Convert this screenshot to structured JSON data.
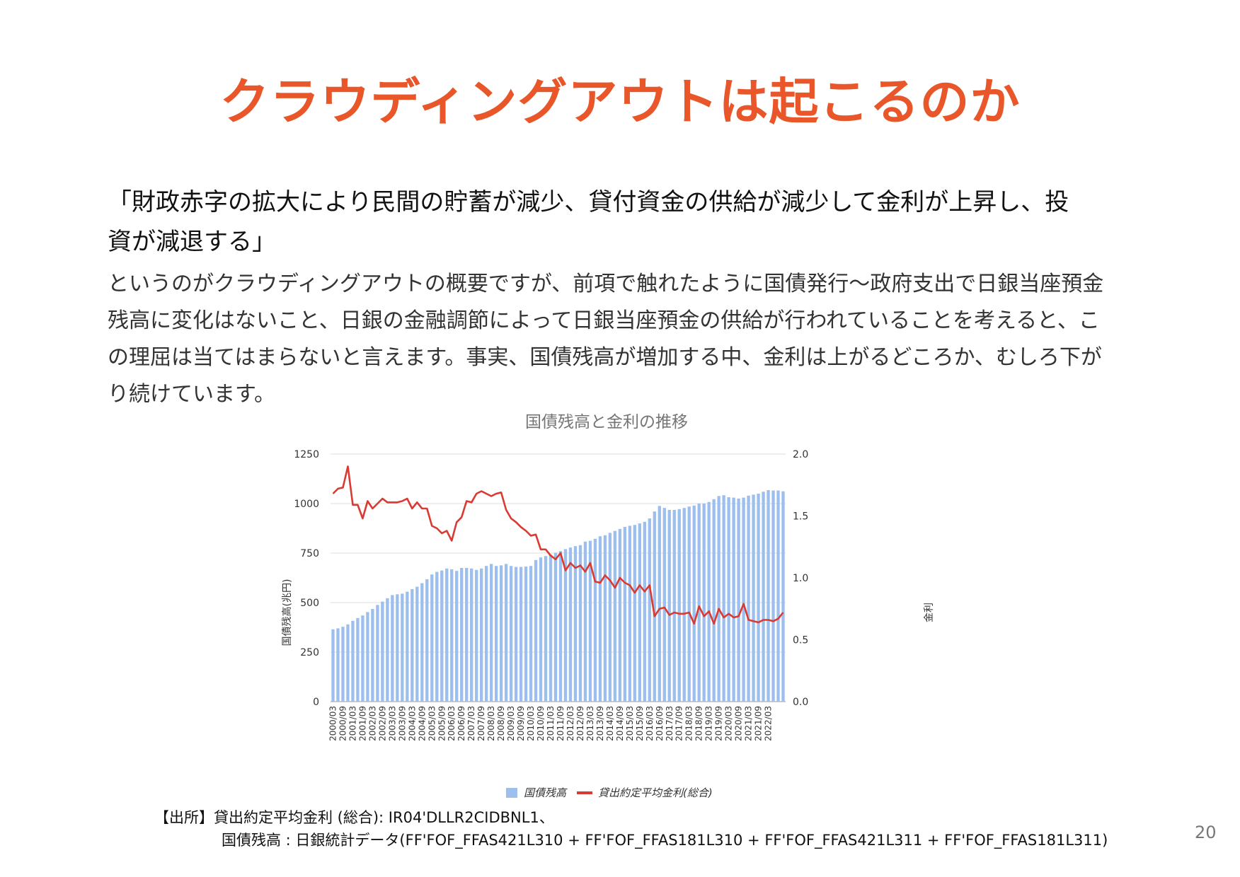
{
  "slide": {
    "title": "クラウディングアウトは起こるのか",
    "quote_line1": "「財政赤字の拡大により民間の貯蓄が減少、貸付資金の供給が減少して金利が上昇し、投",
    "quote_line2": "資が減退する」",
    "body_line1": "というのがクラウディングアウトの概要ですが、前項で触れたように国債発行〜政府支出で日銀当座預金",
    "body_line2": "残高に変化はないこと、日銀の金融調節によって日銀当座預金の供給が行われていることを考えると、こ",
    "body_line3": "の理屈は当てはまらないと言えます。事実、国債残高が増加する中、金利は上がるどころか、むしろ下が",
    "body_line4": "り続けています。",
    "source_line1": "【出所】貸出約定平均金利 (総合): IR04'DLLR2CIDBNL1、",
    "source_line2": "国債残高 : 日銀統計データ(FF'FOF_FFAS421L310 + FF'FOF_FFAS181L310 + FF'FOF_FFAS421L311 + FF'FOF_FFAS181L311)",
    "page_number": "20"
  },
  "chart_data": {
    "type": "bar+line",
    "title": "国債残高と金利の推移",
    "ylabel_left": "国債残高(兆円)",
    "ylabel_right": "金利",
    "ylim_left": [
      0,
      1250
    ],
    "ylim_right": [
      0.0,
      2.0
    ],
    "yticks_left": [
      "0",
      "250",
      "500",
      "750",
      "1000",
      "1250"
    ],
    "yticks_right": [
      "0.0",
      "0.5",
      "1.0",
      "1.5",
      "2.0"
    ],
    "x_tick_labels": [
      "2000/03",
      "2000/09",
      "2001/03",
      "2001/09",
      "2002/03",
      "2002/09",
      "2003/03",
      "2003/09",
      "2004/03",
      "2004/09",
      "2005/03",
      "2005/09",
      "2006/03",
      "2006/09",
      "2007/03",
      "2007/09",
      "2008/03",
      "2008/09",
      "2009/03",
      "2009/09",
      "2010/03",
      "2010/09",
      "2011/03",
      "2011/09",
      "2012/03",
      "2012/09",
      "2013/03",
      "2013/09",
      "2014/03",
      "2014/09",
      "2015/03",
      "2015/09",
      "2016/03",
      "2016/09",
      "2017/03",
      "2017/09",
      "2018/03",
      "2018/09",
      "2019/03",
      "2019/09",
      "2020/03",
      "2020/09",
      "2021/03",
      "2021/09",
      "2022/03"
    ],
    "grid": true,
    "legend_position": "bottom",
    "colors": {
      "bar": "#9dbfee",
      "line": "#d93a32",
      "grid": "#dddddd",
      "axis_text": "#333333",
      "title": "#757575"
    },
    "series": [
      {
        "name": "国債残高",
        "type": "bar",
        "axis": "left",
        "values": [
          365,
          370,
          378,
          390,
          408,
          422,
          435,
          452,
          468,
          488,
          505,
          522,
          538,
          542,
          545,
          555,
          568,
          580,
          598,
          618,
          642,
          655,
          662,
          672,
          668,
          660,
          675,
          675,
          672,
          665,
          672,
          685,
          695,
          685,
          688,
          695,
          685,
          680,
          680,
          682,
          685,
          715,
          728,
          735,
          742,
          752,
          760,
          770,
          778,
          785,
          790,
          808,
          812,
          822,
          835,
          840,
          852,
          862,
          872,
          882,
          888,
          892,
          900,
          908,
          925,
          960,
          988,
          978,
          968,
          968,
          972,
          978,
          985,
          990,
          1000,
          1000,
          1008,
          1022,
          1038,
          1042,
          1032,
          1030,
          1025,
          1030,
          1040,
          1045,
          1050,
          1060,
          1068,
          1066,
          1066,
          1062
        ]
      },
      {
        "name": "貸出約定平均金利(総合)",
        "type": "line",
        "axis": "right",
        "values": [
          1.68,
          1.72,
          1.73,
          1.9,
          1.59,
          1.59,
          1.48,
          1.62,
          1.56,
          1.6,
          1.64,
          1.61,
          1.61,
          1.61,
          1.62,
          1.64,
          1.56,
          1.61,
          1.56,
          1.56,
          1.42,
          1.4,
          1.36,
          1.38,
          1.3,
          1.45,
          1.49,
          1.62,
          1.61,
          1.68,
          1.7,
          1.68,
          1.66,
          1.68,
          1.69,
          1.55,
          1.48,
          1.45,
          1.41,
          1.38,
          1.34,
          1.35,
          1.23,
          1.23,
          1.18,
          1.15,
          1.2,
          1.06,
          1.12,
          1.08,
          1.1,
          1.05,
          1.12,
          0.97,
          0.96,
          1.02,
          0.98,
          0.92,
          1.0,
          0.96,
          0.94,
          0.88,
          0.94,
          0.89,
          0.94,
          0.69,
          0.75,
          0.76,
          0.7,
          0.72,
          0.71,
          0.71,
          0.72,
          0.63,
          0.77,
          0.69,
          0.73,
          0.63,
          0.75,
          0.68,
          0.71,
          0.68,
          0.69,
          0.79,
          0.66,
          0.65,
          0.64,
          0.66,
          0.66,
          0.65,
          0.67,
          0.72
        ]
      }
    ]
  }
}
